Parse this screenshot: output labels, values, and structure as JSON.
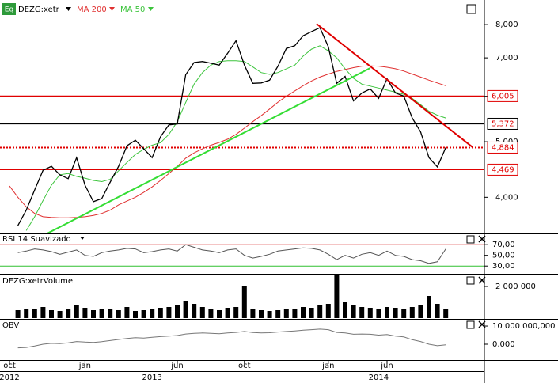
{
  "chart_data": [
    {
      "type": "line",
      "log_scale": true,
      "categories": [
        "oct",
        null,
        null,
        null,
        null,
        null,
        null,
        null,
        null,
        "jan",
        null,
        null,
        null,
        null,
        null,
        null,
        null,
        null,
        null,
        null,
        "jun",
        null,
        null,
        null,
        null,
        null,
        null,
        null,
        "oct",
        null,
        null,
        null,
        null,
        null,
        null,
        null,
        null,
        null,
        "jan",
        null,
        null,
        null,
        null,
        null,
        null,
        "jun",
        null,
        null,
        null,
        null,
        null,
        null,
        null,
        null,
        null,
        null,
        null
      ],
      "year_categories": [
        "2012",
        null,
        null,
        null,
        null,
        null,
        null,
        null,
        null,
        null,
        null,
        null,
        null,
        null,
        null,
        null,
        null,
        "2013",
        null,
        null,
        null,
        null,
        null,
        null,
        null,
        null,
        null,
        null,
        null,
        null,
        null,
        null,
        null,
        null,
        null,
        null,
        null,
        null,
        null,
        null,
        null,
        null,
        null,
        null,
        "2014",
        null,
        null,
        null,
        null,
        null,
        null,
        null,
        null,
        null,
        null,
        null,
        null
      ],
      "series": [
        {
          "name": "DEZG:xetr",
          "color": "#000000",
          "values": [
            null,
            3570,
            3800,
            4120,
            4460,
            4530,
            4380,
            4310,
            4690,
            4200,
            3930,
            3980,
            4250,
            4530,
            4920,
            5030,
            4860,
            4690,
            5100,
            5350,
            5370,
            6540,
            6870,
            6900,
            6850,
            6800,
            7130,
            7500,
            6800,
            6320,
            6330,
            6400,
            6770,
            7270,
            7350,
            7650,
            7780,
            7900,
            7320,
            6320,
            6500,
            5890,
            6080,
            6180,
            5950,
            6440,
            6080,
            6005,
            5500,
            5200,
            4690,
            4520,
            4884,
            null,
            null,
            null,
            null
          ]
        },
        {
          "name": "MA 200",
          "color": "#e03030",
          "values": [
            4185,
            4000,
            3850,
            3750,
            3700,
            3690,
            3685,
            3685,
            3690,
            3700,
            3720,
            3750,
            3800,
            3880,
            3940,
            4000,
            4080,
            4170,
            4280,
            4400,
            4530,
            4680,
            4780,
            4860,
            4930,
            4985,
            5050,
            5150,
            5280,
            5420,
            5550,
            5700,
            5860,
            6000,
            6130,
            6260,
            6380,
            6480,
            6560,
            6630,
            6680,
            6730,
            6770,
            6780,
            6770,
            6740,
            6700,
            6640,
            6560,
            6480,
            6400,
            6330,
            6260,
            null,
            null,
            null,
            null
          ]
        },
        {
          "name": "MA 50",
          "color": "#3cc43c",
          "values": [
            null,
            null,
            3500,
            3700,
            3950,
            4200,
            4380,
            4400,
            4350,
            4320,
            4280,
            4260,
            4300,
            4450,
            4600,
            4750,
            4850,
            4930,
            4980,
            5150,
            5420,
            5850,
            6300,
            6600,
            6800,
            6900,
            6920,
            6920,
            6900,
            6750,
            6600,
            6550,
            6600,
            6700,
            6800,
            7050,
            7250,
            7350,
            7200,
            7000,
            6700,
            6450,
            6300,
            6250,
            6200,
            6150,
            6100,
            6050,
            5950,
            5800,
            5650,
            5560,
            5500,
            null,
            null,
            null,
            null
          ]
        }
      ],
      "ylim": [
        3460,
        8830
      ],
      "yticks": [
        {
          "value": 4000,
          "label": "4,000"
        },
        {
          "value": 5000,
          "label": "5,000"
        },
        {
          "value": 6000,
          "label": "6,000"
        },
        {
          "value": 7000,
          "label": "7,000"
        },
        {
          "value": 8000,
          "label": "8,000"
        }
      ],
      "levels": [
        {
          "value": 6005,
          "label": "6,005",
          "color": "#e00000",
          "style": "solid"
        },
        {
          "value": 5372,
          "label": "5,372",
          "color": "#000000",
          "style": "solid"
        },
        {
          "value": 4884,
          "label": "4,884",
          "color": "#e00000",
          "style": "dotted"
        },
        {
          "value": 4469,
          "label": "4,469",
          "color": "#e00000",
          "style": "solid"
        }
      ],
      "trendlines": [
        {
          "x": [
            36.6,
            55.2
          ],
          "values": [
            8025,
            4890
          ],
          "color": "#e00000"
        },
        {
          "x": [
            4.5,
            43
          ],
          "values": [
            3460,
            6720
          ],
          "color": "#33dd33"
        }
      ]
    },
    {
      "type": "line",
      "title": "RSI 14 Suavizado",
      "series": [
        {
          "name": "RSI",
          "color": "#555555",
          "values": [
            null,
            55,
            58,
            62,
            60,
            57,
            52,
            56,
            60,
            50,
            48,
            55,
            58,
            60,
            63,
            62,
            55,
            57,
            60,
            62,
            58,
            70,
            65,
            60,
            58,
            55,
            60,
            62,
            50,
            45,
            48,
            52,
            58,
            60,
            62,
            64,
            63,
            60,
            52,
            42,
            50,
            45,
            52,
            55,
            50,
            58,
            50,
            48,
            42,
            40,
            35,
            38,
            62,
            null,
            null,
            null,
            null
          ]
        }
      ],
      "ylim": [
        17,
        88
      ],
      "yticks": [
        {
          "value": 30,
          "label": "30,00"
        },
        {
          "value": 50,
          "label": "50,00"
        },
        {
          "value": 70,
          "label": "70,00"
        }
      ],
      "bands": [
        {
          "value": 70,
          "color": "#e06060"
        },
        {
          "value": 30,
          "color": "#30c030"
        }
      ]
    },
    {
      "type": "bar",
      "title": "DEZG:xetrVolume",
      "color": "#000000",
      "values": [
        null,
        500000,
        600000,
        550000,
        700000,
        500000,
        450000,
        600000,
        800000,
        650000,
        500000,
        550000,
        600000,
        500000,
        700000,
        450000,
        500000,
        600000,
        650000,
        700000,
        800000,
        1100000,
        900000,
        700000,
        600000,
        500000,
        650000,
        700000,
        2000000,
        600000,
        500000,
        450000,
        500000,
        550000,
        600000,
        700000,
        650000,
        800000,
        900000,
        2700000,
        1000000,
        800000,
        700000,
        650000,
        600000,
        700000,
        650000,
        600000,
        700000,
        800000,
        1400000,
        900000,
        600000,
        null,
        null,
        null,
        null
      ],
      "ylim": [
        0,
        2750000
      ],
      "yticks": [
        {
          "value": 2000000,
          "label": "2 000 000"
        }
      ]
    },
    {
      "type": "line",
      "title": "OBV",
      "series": [
        {
          "name": "OBV",
          "color": "#777777",
          "values": [
            null,
            -2000000,
            -1800000,
            -1000000,
            0,
            500000,
            300000,
            800000,
            1500000,
            1200000,
            1000000,
            1400000,
            2000000,
            2600000,
            3200000,
            3600000,
            3400000,
            3800000,
            4200000,
            4500000,
            4800000,
            5600000,
            6000000,
            6200000,
            6000000,
            5800000,
            6200000,
            6500000,
            7000000,
            6400000,
            6200000,
            6300000,
            6700000,
            7000000,
            7300000,
            7700000,
            8000000,
            8300000,
            8000000,
            6500000,
            6200000,
            5500000,
            5600000,
            5500000,
            5000000,
            5300000,
            4500000,
            4000000,
            2500000,
            1500000,
            0,
            -800000,
            -300000,
            null,
            null,
            null,
            null
          ]
        }
      ],
      "ylim": [
        -8700000,
        13500000
      ],
      "yticks": [
        {
          "value": 10000000,
          "label": "10 000 000,000"
        },
        {
          "value": 0,
          "label": "0,000"
        }
      ]
    }
  ]
}
